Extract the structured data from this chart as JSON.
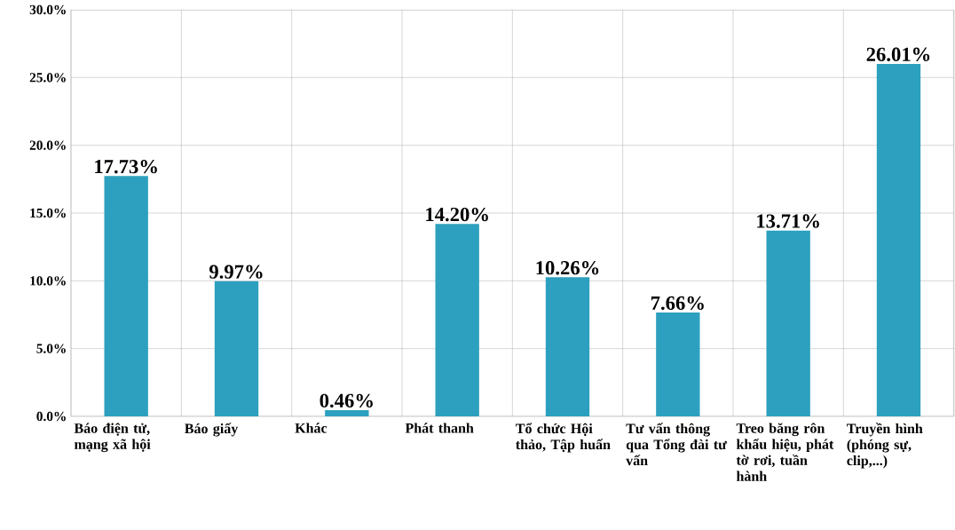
{
  "chart_data": {
    "type": "bar",
    "categories": [
      "Báo điện tử, mạng xã hội",
      "Báo giấy",
      "Khác",
      "Phát thanh",
      "Tổ chức Hội thảo, Tập huấn",
      "Tư vấn thông qua Tổng đài tư vấn",
      "Treo băng rôn khẩu hiệu, phát tờ rơi, tuần hành",
      "Truyền hình (phóng sự, clip,...)"
    ],
    "values": [
      17.73,
      9.97,
      0.46,
      14.2,
      10.26,
      7.66,
      13.71,
      26.01
    ],
    "value_labels": [
      "17.73%",
      "9.97%",
      "0.46%",
      "14.20%",
      "10.26%",
      "7.66%",
      "13.71%",
      "26.01%"
    ],
    "color": "#2ca0be",
    "ylim": [
      0,
      30
    ],
    "yticks": [
      {
        "value": 0,
        "label": "0.0%"
      },
      {
        "value": 5,
        "label": "5.0%"
      },
      {
        "value": 10,
        "label": "10.0%"
      },
      {
        "value": 15,
        "label": "15.0%"
      },
      {
        "value": 20,
        "label": "20.0%"
      },
      {
        "value": 25,
        "label": "25.0%"
      },
      {
        "value": 30,
        "label": "30.0%"
      }
    ],
    "grid": true
  }
}
